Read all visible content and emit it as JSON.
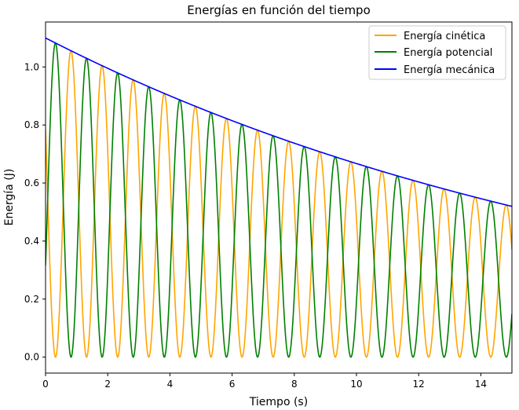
{
  "chart_data": {
    "type": "line",
    "title": "Energías en función del tiempo",
    "xlabel": "Tiempo (s)",
    "ylabel": "Energía (J)",
    "xlim": [
      0,
      15
    ],
    "ylim": [
      -0.055,
      1.155
    ],
    "x_ticks": [
      0,
      2,
      4,
      6,
      8,
      10,
      12,
      14
    ],
    "x_tick_labels": [
      "0",
      "2",
      "4",
      "6",
      "8",
      "10",
      "12",
      "14"
    ],
    "y_ticks": [
      0.0,
      0.2,
      0.4,
      0.6,
      0.8,
      1.0
    ],
    "y_tick_labels": [
      "0.0",
      "0.2",
      "0.4",
      "0.6",
      "0.8",
      "1.0"
    ],
    "grid": false,
    "legend_position": "top-right",
    "model": {
      "E0": 1.1,
      "decay_rate": 0.05,
      "period_s": 1.0,
      "phase": 0.18
    },
    "series": [
      {
        "name": "Energía cinética",
        "color": "#ffa500",
        "formula": "E(t) * cos^2(pi*(t + phase))"
      },
      {
        "name": "Energía potencial",
        "color": "#008000",
        "formula": "E(t) * sin^2(pi*(t + phase))"
      },
      {
        "name": "Energía mecánica",
        "color": "#0000ff",
        "formula": "E0 * exp(-decay_rate*t)",
        "x": [
          0,
          1,
          2,
          3,
          4,
          5,
          6,
          7,
          8,
          9,
          10,
          11,
          12,
          13,
          14,
          15
        ],
        "values": [
          1.1,
          1.046,
          0.995,
          0.947,
          0.9,
          0.857,
          0.815,
          0.775,
          0.737,
          0.701,
          0.667,
          0.635,
          0.604,
          0.574,
          0.546,
          0.52
        ]
      }
    ]
  }
}
